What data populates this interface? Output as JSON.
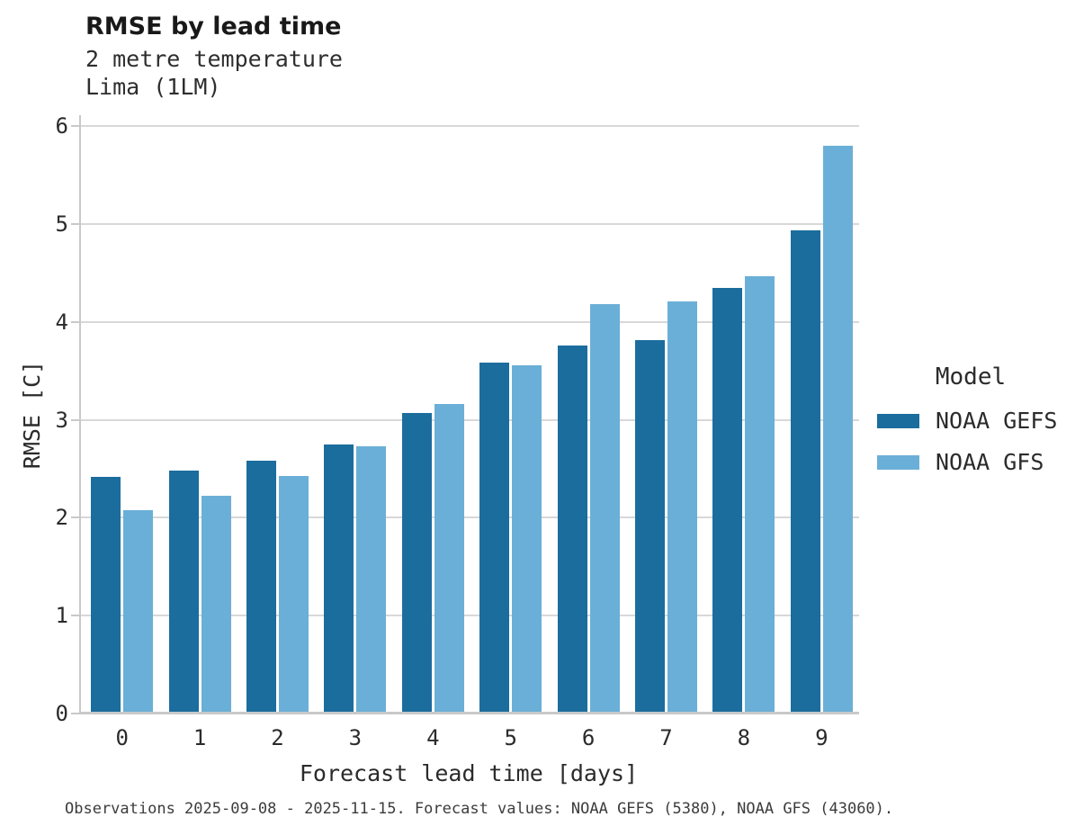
{
  "chart_data": {
    "type": "bar",
    "title": "RMSE by lead time",
    "subtitle": [
      "2 metre temperature",
      "Lima (1LM)"
    ],
    "xlabel": "Forecast lead time [days]",
    "ylabel": "RMSE [C]",
    "categories": [
      "0",
      "1",
      "2",
      "3",
      "4",
      "5",
      "6",
      "7",
      "8",
      "9"
    ],
    "series": [
      {
        "name": "NOAA GEFS",
        "color": "#1b6d9d",
        "values": [
          2.42,
          2.48,
          2.58,
          2.75,
          3.07,
          3.58,
          3.76,
          3.81,
          4.35,
          4.93
        ]
      },
      {
        "name": "NOAA GFS",
        "color": "#6aafd7",
        "values": [
          2.08,
          2.22,
          2.43,
          2.73,
          3.16,
          3.56,
          4.18,
          4.21,
          4.47,
          5.8
        ]
      }
    ],
    "ylim": [
      0,
      6
    ],
    "yticks": [
      0,
      1,
      2,
      3,
      4,
      5,
      6
    ],
    "grid": true,
    "legend_title": "Model",
    "legend_position": "right",
    "caption": "Observations 2025-09-08 - 2025-11-15. Forecast values: NOAA GEFS (5380), NOAA GFS (43060)."
  }
}
